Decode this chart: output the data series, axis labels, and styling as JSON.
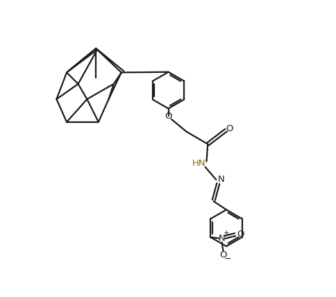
{
  "bg_color": "#ffffff",
  "line_color": "#1a1a1a",
  "hn_color": "#8B6914",
  "line_width": 1.6,
  "figsize": [
    4.84,
    4.28
  ],
  "dpi": 100,
  "xlim": [
    0,
    10
  ],
  "ylim": [
    0,
    9
  ]
}
